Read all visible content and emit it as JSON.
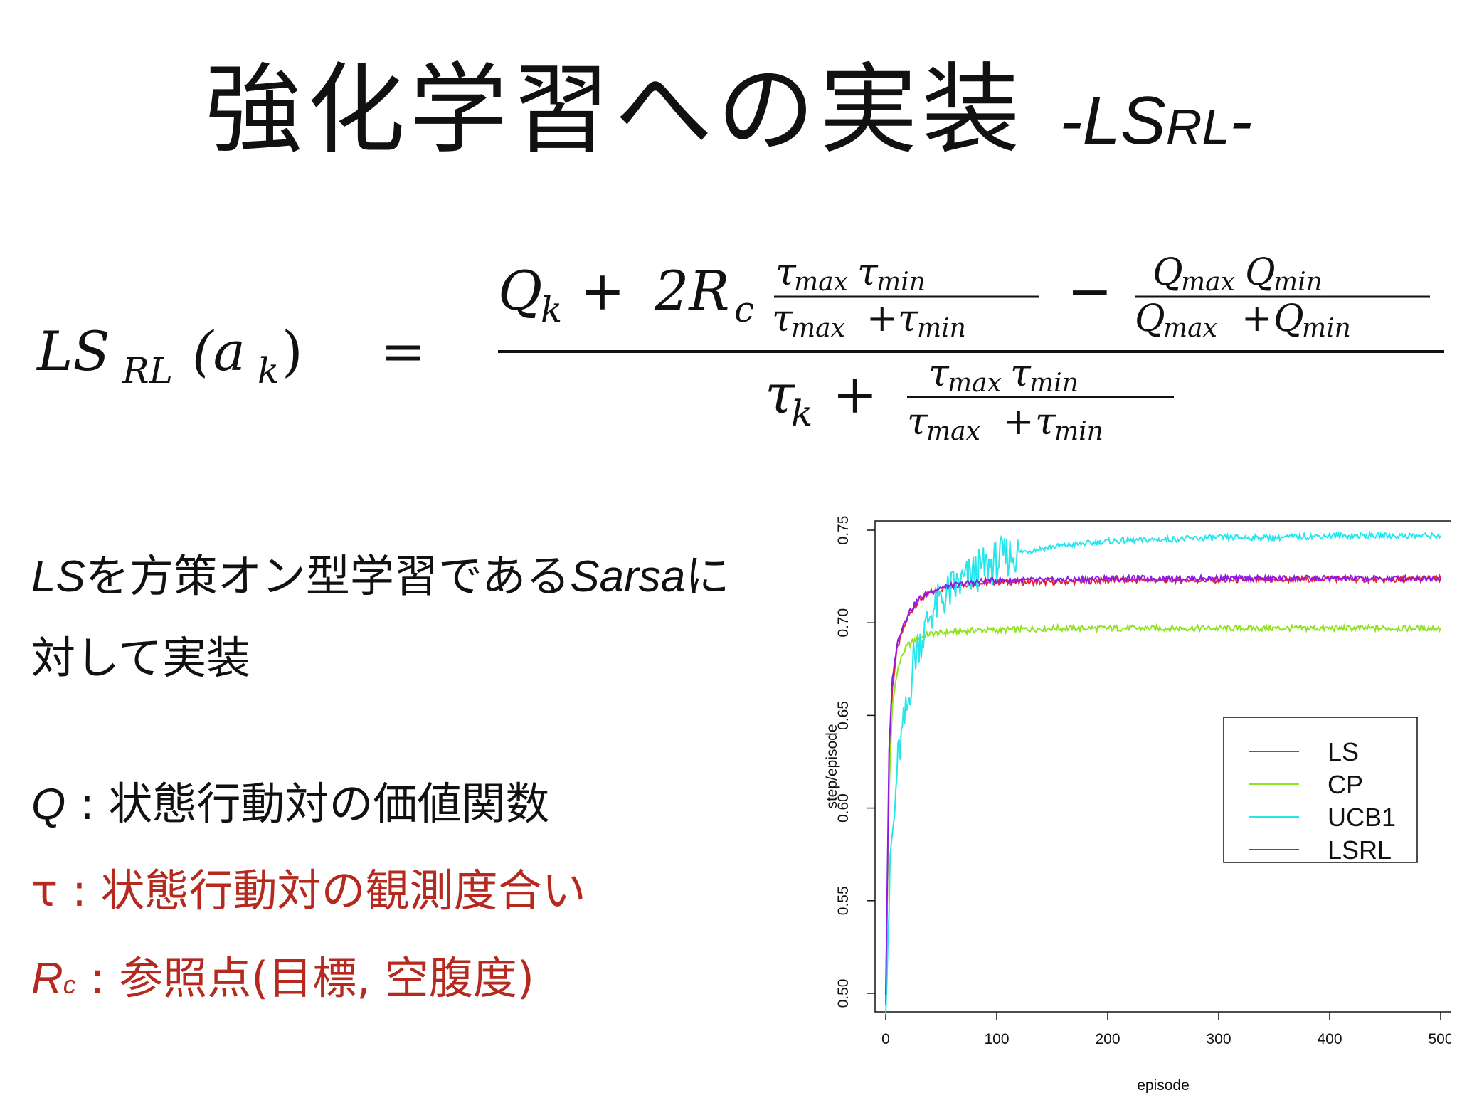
{
  "slide": {
    "title_main": "強化学習への実装",
    "title_sub_lead": "-LS",
    "title_sub_small": "RL",
    "title_sub_tail": "-"
  },
  "formula": {
    "lhs_main": "LS",
    "lhs_sub": "RL",
    "lhs_arg": "(a",
    "lhs_arg_sub": "k",
    "lhs_close": ")",
    "equals": "=",
    "q": "Q",
    "k": "k",
    "plus": "+",
    "two_r": "2R",
    "c": "c",
    "minus": "−",
    "tau": "τ",
    "max": "max",
    "min": "min"
  },
  "text": {
    "line1_ls": "LS",
    "line1_a": "を方策オン型学習である",
    "line1_sarsa": "Sarsa",
    "line1_b": "に",
    "line2": "対して実装",
    "def_q_symbol": "Q",
    "def_q_text": " : 状態行動対の価値関数",
    "def_tau_symbol": "τ",
    "def_tau_text": "  : 状態行動対の観測度合い",
    "def_rc_symbol": "R",
    "def_rc_sub": "c",
    "def_rc_text": " : 参照点(目標,  空腹度)"
  },
  "chart_data": {
    "type": "line",
    "title": "",
    "xlabel": "episode",
    "ylabel": "step/episode",
    "xlim": [
      0,
      500
    ],
    "ylim": [
      0.49,
      0.755
    ],
    "x_ticks": [
      "0",
      "100",
      "200",
      "300",
      "400",
      "500"
    ],
    "y_ticks": [
      "0.50",
      "0.55",
      "0.60",
      "0.65",
      "0.70",
      "0.75"
    ],
    "legend_position": "right",
    "grid": false,
    "series": [
      {
        "name": "LS",
        "color": "#e8242a",
        "x": [
          0,
          3,
          6,
          10,
          15,
          20,
          25,
          30,
          40,
          50,
          60,
          70,
          80,
          100,
          120,
          150,
          200,
          250,
          300,
          350,
          400,
          450,
          500
        ],
        "y": [
          0.495,
          0.62,
          0.665,
          0.685,
          0.695,
          0.703,
          0.708,
          0.712,
          0.716,
          0.718,
          0.72,
          0.721,
          0.721,
          0.722,
          0.722,
          0.722,
          0.723,
          0.723,
          0.723,
          0.723,
          0.724,
          0.723,
          0.724
        ]
      },
      {
        "name": "CP",
        "color": "#8fe31f",
        "x": [
          0,
          3,
          6,
          10,
          15,
          20,
          30,
          40,
          60,
          80,
          100,
          150,
          200,
          300,
          400,
          500
        ],
        "y": [
          0.5,
          0.61,
          0.655,
          0.673,
          0.683,
          0.688,
          0.692,
          0.694,
          0.695,
          0.696,
          0.696,
          0.697,
          0.697,
          0.697,
          0.697,
          0.697
        ]
      },
      {
        "name": "UCB1",
        "color": "#26e6ec",
        "x": [
          0,
          5,
          8,
          10,
          12,
          15,
          18,
          20,
          22,
          25,
          28,
          30,
          35,
          40,
          50,
          60,
          70,
          80,
          90,
          100,
          110,
          120,
          150,
          200,
          250,
          300,
          350,
          400,
          450,
          500
        ],
        "y": [
          0.5,
          0.58,
          0.595,
          0.62,
          0.63,
          0.64,
          0.65,
          0.655,
          0.665,
          0.68,
          0.685,
          0.69,
          0.695,
          0.705,
          0.712,
          0.718,
          0.722,
          0.727,
          0.73,
          0.733,
          0.736,
          0.738,
          0.741,
          0.744,
          0.745,
          0.746,
          0.746,
          0.747,
          0.747,
          0.747
        ]
      },
      {
        "name": "LSRL",
        "color": "#8e1be6",
        "x": [
          0,
          3,
          6,
          10,
          15,
          20,
          25,
          30,
          40,
          50,
          60,
          70,
          80,
          100,
          120,
          150,
          200,
          250,
          300,
          350,
          400,
          450,
          500
        ],
        "y": [
          0.5,
          0.63,
          0.67,
          0.688,
          0.698,
          0.705,
          0.709,
          0.713,
          0.717,
          0.719,
          0.72,
          0.721,
          0.722,
          0.723,
          0.723,
          0.723,
          0.724,
          0.724,
          0.724,
          0.724,
          0.724,
          0.724,
          0.724
        ]
      }
    ]
  }
}
